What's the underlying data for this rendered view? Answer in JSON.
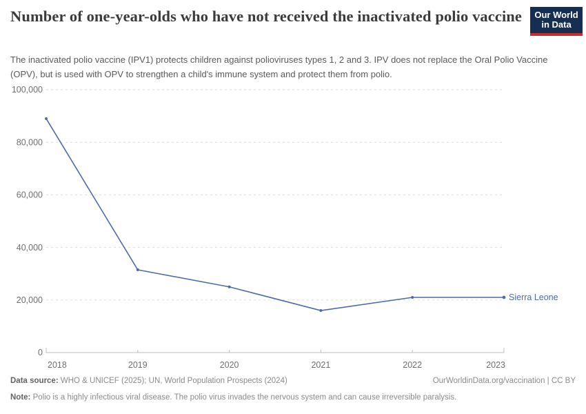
{
  "header": {
    "title": "Number of one-year-olds who have not received the inactivated polio vaccine",
    "subtitle": "The inactivated polio vaccine (IPV1) protects children against polioviruses types 1, 2 and 3. IPV does not replace the Oral Polio Vaccine (OPV), but is used with OPV to strengthen a child's immune system and protect them from polio.",
    "logo": {
      "line1": "Our World",
      "line2": "in Data",
      "bg_color": "#152e52",
      "accent_color": "#c5302b"
    }
  },
  "chart_data": {
    "type": "line",
    "title": "Number of one-year-olds who have not received the inactivated polio vaccine",
    "x": [
      2018,
      2019,
      2020,
      2021,
      2022,
      2023
    ],
    "x_tick_labels": [
      "2018",
      "2019",
      "2020",
      "2021",
      "2022",
      "2023"
    ],
    "series": [
      {
        "name": "Sierra Leone",
        "values": [
          89000,
          31500,
          25000,
          16000,
          21000,
          21000
        ],
        "color": "#4c6ba9"
      }
    ],
    "ylim": [
      0,
      100000
    ],
    "y_ticks": [
      0,
      20000,
      40000,
      60000,
      80000,
      100000
    ],
    "y_tick_labels": [
      "0",
      "20,000",
      "40,000",
      "60,000",
      "80,000",
      "100,000"
    ],
    "grid": "horizontal dashed",
    "legend_position": "end-of-line label"
  },
  "footer": {
    "datasource_label": "Data source:",
    "datasource_text": " WHO & UNICEF (2025); UN, World Population Prospects (2024)",
    "attribution": "OurWorldinData.org/vaccination | CC BY",
    "note_label": "Note:",
    "note_text": " Polio is a highly infectious viral disease. The polio virus invades the nervous system and can cause irreversible paralysis."
  }
}
